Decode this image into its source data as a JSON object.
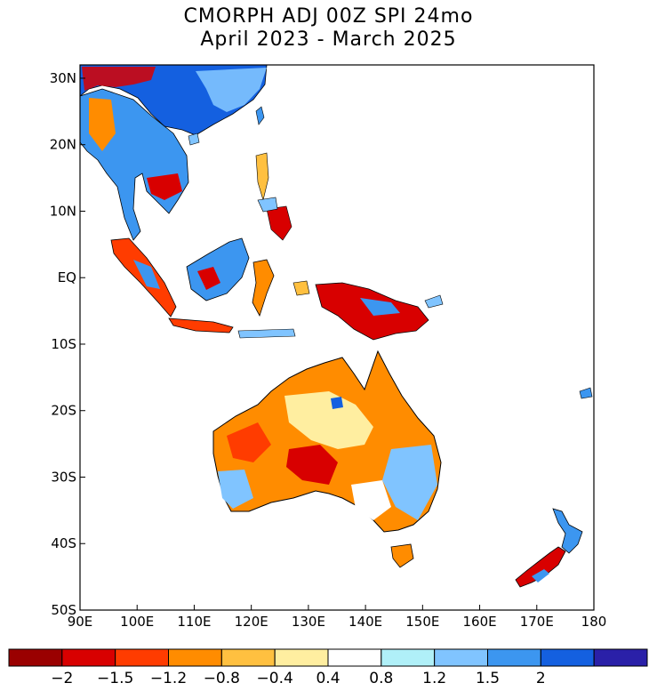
{
  "title": {
    "line1": "CMORPH ADJ 00Z SPI 24mo",
    "line2": "April 2023 - March 2025"
  },
  "map": {
    "lon_range": [
      90,
      180
    ],
    "lat_range": [
      -50,
      32
    ],
    "lat_ticks": [
      {
        "value": 30,
        "label": "30N"
      },
      {
        "value": 20,
        "label": "20N"
      },
      {
        "value": 10,
        "label": "10N"
      },
      {
        "value": 0,
        "label": "EQ"
      },
      {
        "value": -10,
        "label": "10S"
      },
      {
        "value": -20,
        "label": "20S"
      },
      {
        "value": -30,
        "label": "30S"
      },
      {
        "value": -40,
        "label": "40S"
      },
      {
        "value": -50,
        "label": "50S"
      }
    ],
    "lon_ticks": [
      {
        "value": 90,
        "label": "90E"
      },
      {
        "value": 100,
        "label": "100E"
      },
      {
        "value": 110,
        "label": "110E"
      },
      {
        "value": 120,
        "label": "120E"
      },
      {
        "value": 130,
        "label": "130E"
      },
      {
        "value": 140,
        "label": "140E"
      },
      {
        "value": 150,
        "label": "150E"
      },
      {
        "value": 160,
        "label": "160E"
      },
      {
        "value": 170,
        "label": "170E"
      },
      {
        "value": 180,
        "label": "180"
      }
    ]
  },
  "colorbar": {
    "colors": [
      "#9a0000",
      "#d80000",
      "#ff3c00",
      "#ff8c00",
      "#ffc040",
      "#ffeea0",
      "#ffffff",
      "#b0f0f8",
      "#80c4ff",
      "#3c96f0",
      "#1460e0",
      "#2a20a8"
    ],
    "labels": [
      "-2",
      "-1.5",
      "-1.2",
      "-0.8",
      "-0.4",
      "0.4",
      "0.8",
      "1.2",
      "1.5",
      "2"
    ]
  },
  "regions": [
    {
      "id": "china-south",
      "color": "#1460e0"
    },
    {
      "id": "indochina",
      "color": "#3c96f0"
    },
    {
      "id": "australia-west",
      "color": "#ff8c00"
    },
    {
      "id": "australia-southeast",
      "color": "#80c4ff"
    },
    {
      "id": "new-guinea",
      "color": "#d80000"
    }
  ]
}
